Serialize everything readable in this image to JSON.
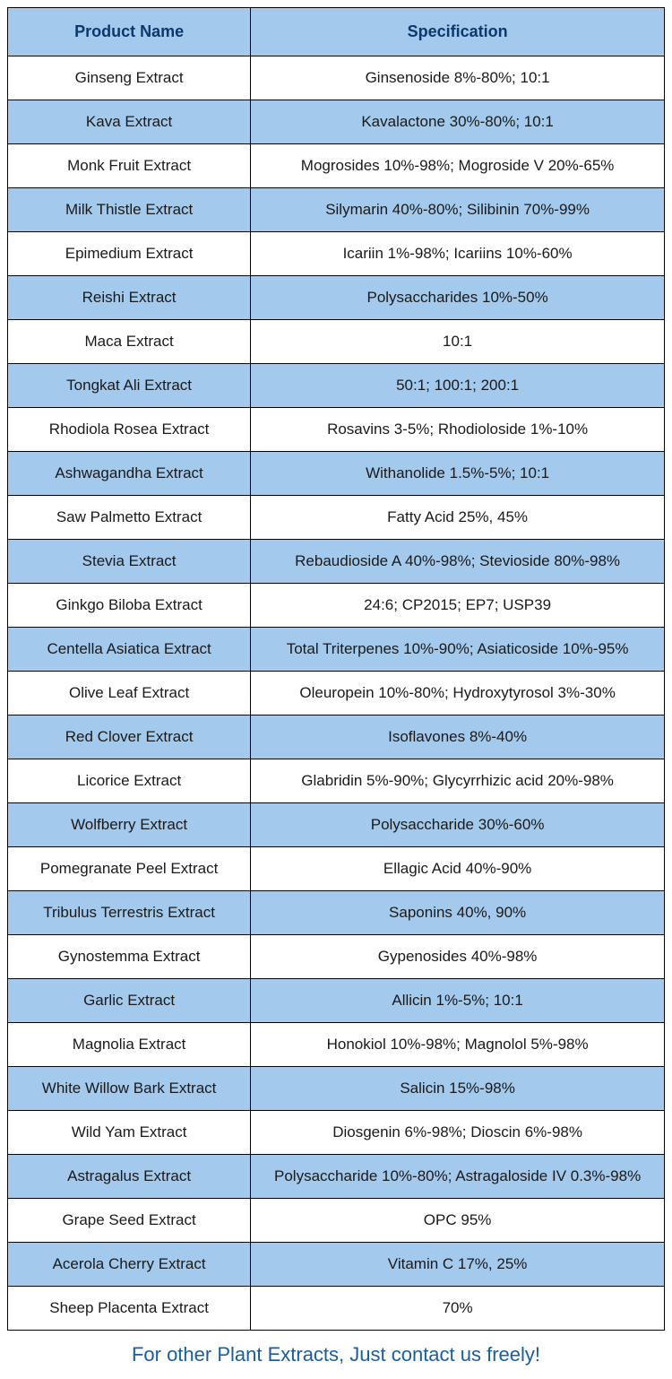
{
  "table": {
    "columns": [
      {
        "label": "Product Name",
        "width": "37%"
      },
      {
        "label": "Specification",
        "width": "63%"
      }
    ],
    "header_bg_color": "#a3c9ed",
    "header_text_color": "#0a3a6b",
    "row_white_bg": "#ffffff",
    "row_blue_bg": "#a3c9ed",
    "border_color": "#000000",
    "text_color": "#1a1a1a",
    "header_fontsize": 18,
    "cell_fontsize": 17,
    "rows": [
      {
        "name": "Ginseng Extract",
        "spec": "Ginsenoside 8%-80%; 10:1",
        "bg": "white"
      },
      {
        "name": "Kava Extract",
        "spec": "Kavalactone 30%-80%; 10:1",
        "bg": "blue"
      },
      {
        "name": "Monk Fruit Extract",
        "spec": "Mogrosides 10%-98%; Mogroside V 20%-65%",
        "bg": "white"
      },
      {
        "name": "Milk Thistle Extract",
        "spec": "Silymarin 40%-80%; Silibinin 70%-99%",
        "bg": "blue"
      },
      {
        "name": "Epimedium Extract",
        "spec": "Icariin 1%-98%; Icariins 10%-60%",
        "bg": "white"
      },
      {
        "name": "Reishi Extract",
        "spec": "Polysaccharides 10%-50%",
        "bg": "blue"
      },
      {
        "name": "Maca Extract",
        "spec": "10:1",
        "bg": "white"
      },
      {
        "name": "Tongkat Ali Extract",
        "spec": "50:1; 100:1; 200:1",
        "bg": "blue"
      },
      {
        "name": "Rhodiola Rosea Extract",
        "spec": "Rosavins 3-5%; Rhodioloside 1%-10%",
        "bg": "white"
      },
      {
        "name": "Ashwagandha Extract",
        "spec": "Withanolide 1.5%-5%; 10:1",
        "bg": "blue"
      },
      {
        "name": "Saw Palmetto Extract",
        "spec": "Fatty Acid 25%, 45%",
        "bg": "white"
      },
      {
        "name": "Stevia Extract",
        "spec": "Rebaudioside A 40%-98%; Stevioside 80%-98%",
        "bg": "blue"
      },
      {
        "name": "Ginkgo Biloba Extract",
        "spec": "24:6; CP2015; EP7; USP39",
        "bg": "white"
      },
      {
        "name": "Centella Asiatica Extract",
        "spec": "Total Triterpenes 10%-90%; Asiaticoside 10%-95%",
        "bg": "blue"
      },
      {
        "name": "Olive Leaf Extract",
        "spec": "Oleuropein 10%-80%; Hydroxytyrosol 3%-30%",
        "bg": "white"
      },
      {
        "name": "Red Clover Extract",
        "spec": "Isoflavones 8%-40%",
        "bg": "blue"
      },
      {
        "name": "Licorice Extract",
        "spec": "Glabridin 5%-90%; Glycyrrhizic acid 20%-98%",
        "bg": "white"
      },
      {
        "name": "Wolfberry Extract",
        "spec": "Polysaccharide 30%-60%",
        "bg": "blue"
      },
      {
        "name": "Pomegranate Peel Extract",
        "spec": "Ellagic Acid 40%-90%",
        "bg": "white"
      },
      {
        "name": "Tribulus Terrestris Extract",
        "spec": "Saponins 40%, 90%",
        "bg": "blue"
      },
      {
        "name": "Gynostemma Extract",
        "spec": "Gypenosides 40%-98%",
        "bg": "white"
      },
      {
        "name": "Garlic Extract",
        "spec": "Allicin 1%-5%; 10:1",
        "bg": "blue"
      },
      {
        "name": "Magnolia Extract",
        "spec": "Honokiol 10%-98%; Magnolol 5%-98%",
        "bg": "white"
      },
      {
        "name": "White Willow Bark Extract",
        "spec": "Salicin 15%-98%",
        "bg": "blue"
      },
      {
        "name": "Wild Yam Extract",
        "spec": "Diosgenin 6%-98%; Dioscin 6%-98%",
        "bg": "white"
      },
      {
        "name": "Astragalus Extract",
        "spec": "Polysaccharide 10%-80%; Astragaloside IV 0.3%-98%",
        "bg": "blue"
      },
      {
        "name": "Grape Seed Extract",
        "spec": "OPC 95%",
        "bg": "white"
      },
      {
        "name": "Acerola Cherry Extract",
        "spec": "Vitamin C 17%, 25%",
        "bg": "blue"
      },
      {
        "name": "Sheep Placenta Extract",
        "spec": "70%",
        "bg": "white"
      }
    ]
  },
  "footer": {
    "text": "For other Plant Extracts, Just contact us freely!",
    "color": "#1a5ea0",
    "fontsize": 22
  }
}
